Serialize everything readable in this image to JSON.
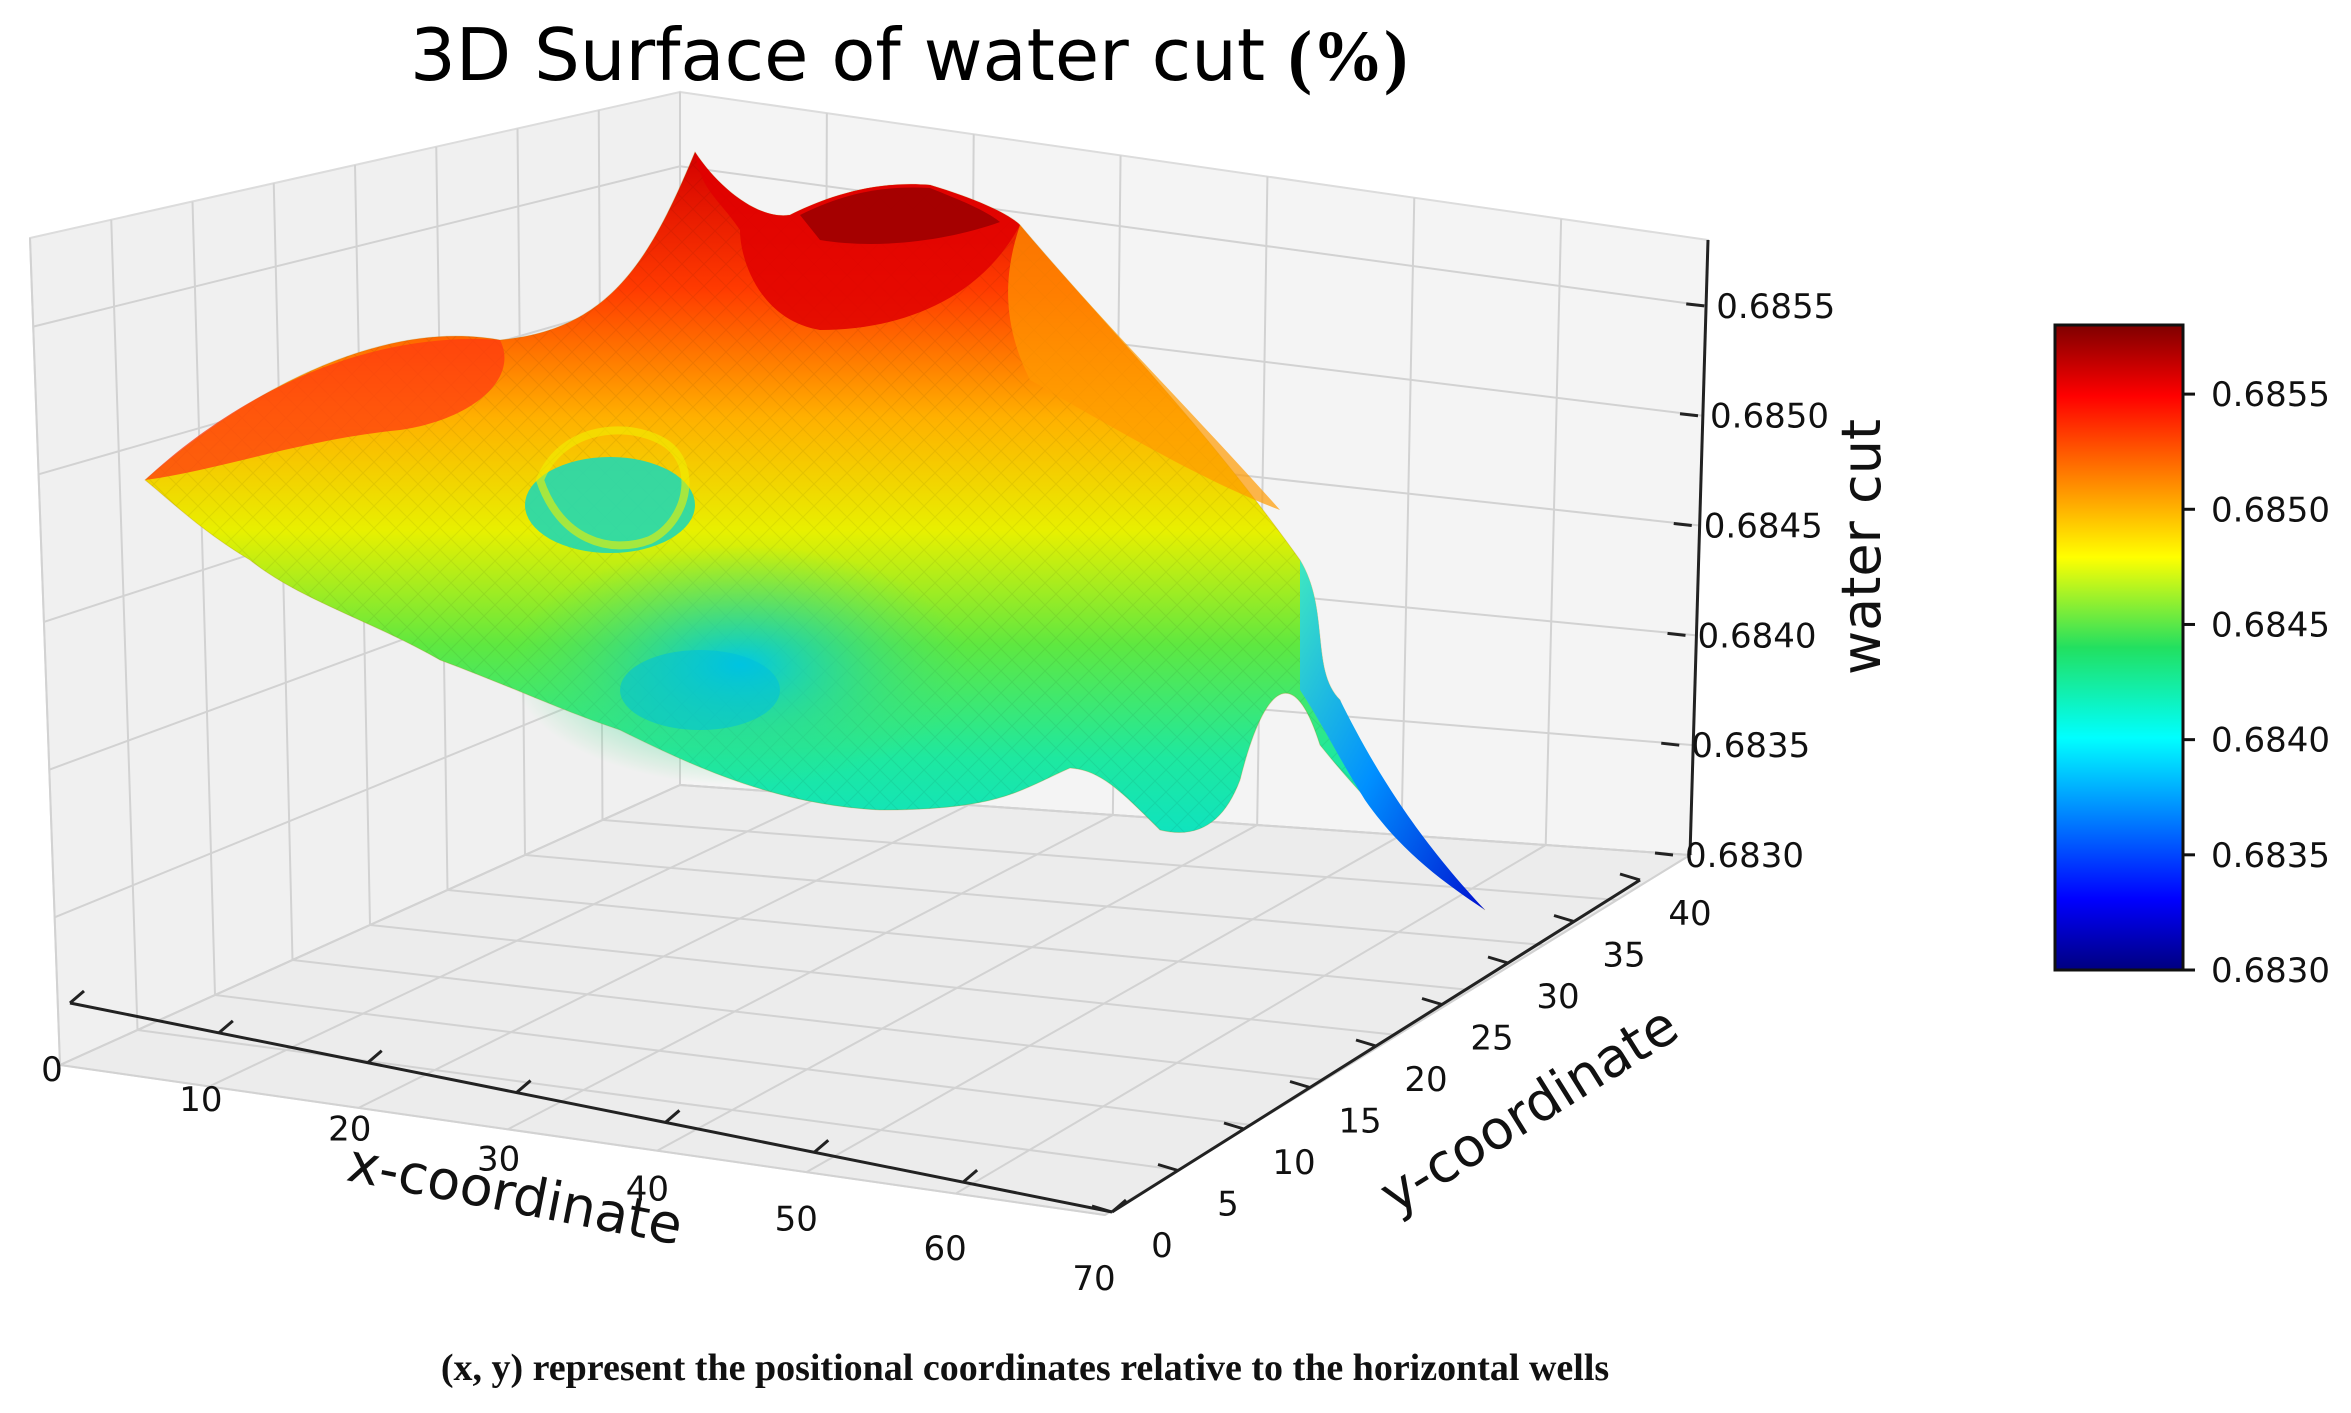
{
  "chart_data": {
    "type": "surface",
    "title": "3D Surface of water cut",
    "title_unit": "(%)",
    "xlabel": "x-coordinate",
    "ylabel": "y-coordinate",
    "zlabel": "water cut",
    "xlim": [
      0,
      70
    ],
    "ylim": [
      0,
      40
    ],
    "zlim": [
      0.683,
      0.6858
    ],
    "x_ticks": [
      "0",
      "10",
      "20",
      "30",
      "40",
      "50",
      "60",
      "70"
    ],
    "y_ticks": [
      "0",
      "5",
      "10",
      "15",
      "20",
      "25",
      "30",
      "35",
      "40"
    ],
    "z_ticks": [
      "0.6830",
      "0.6835",
      "0.6840",
      "0.6845",
      "0.6850",
      "0.6855"
    ],
    "colorbar": {
      "colormap": "jet",
      "range": [
        0.683,
        0.6858
      ],
      "ticks": [
        "0.6830",
        "0.6835",
        "0.6840",
        "0.6845",
        "0.6850",
        "0.6855"
      ]
    },
    "surface_features": [
      {
        "kind": "peak",
        "x": 18,
        "y": 38,
        "z": 0.6857
      },
      {
        "kind": "peak",
        "x": 34,
        "y": 40,
        "z": 0.6858
      },
      {
        "kind": "ridge",
        "x": 0,
        "y": 12,
        "z": 0.6853
      },
      {
        "kind": "well",
        "x": 24,
        "y": 28,
        "z": 0.6842
      },
      {
        "kind": "basin",
        "x": 32,
        "y": 8,
        "z": 0.6841
      },
      {
        "kind": "edge_low",
        "x": 70,
        "y": 40,
        "z": 0.6831
      }
    ],
    "caption": "(x, y) represent the positional coordinates relative to the horizontal wells"
  }
}
